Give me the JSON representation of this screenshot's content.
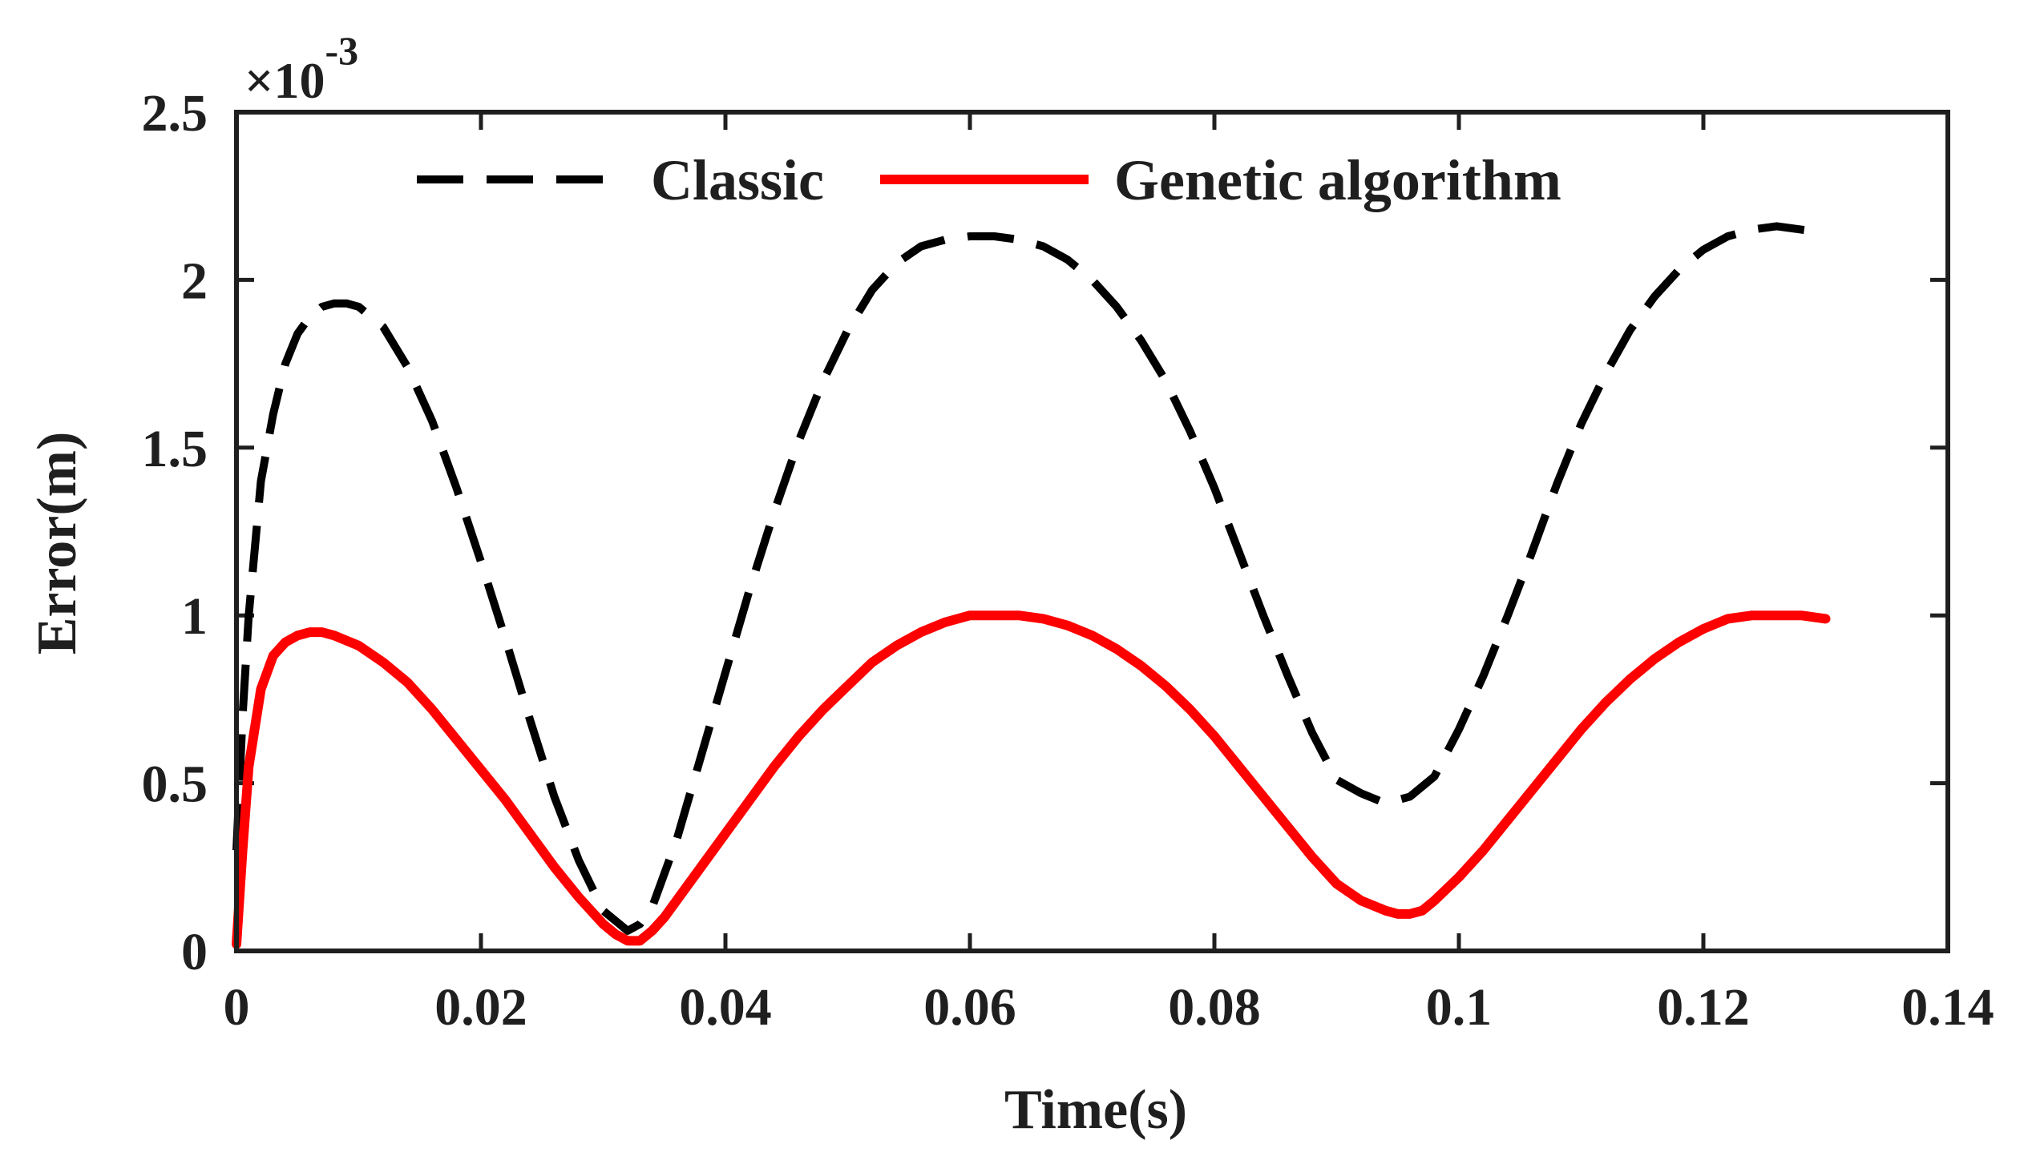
{
  "chart_data": {
    "type": "line",
    "title": "",
    "xlabel": "Time(s)",
    "ylabel": "Error(m)",
    "xlim": [
      0,
      0.14
    ],
    "ylim": [
      0,
      0.0025
    ],
    "xticks": [
      0,
      0.02,
      0.04,
      0.06,
      0.08,
      0.1,
      0.12,
      0.14
    ],
    "xtick_labels": [
      "0",
      "0.02",
      "0.04",
      "0.06",
      "0.08",
      "0.1",
      "0.12",
      "0.14"
    ],
    "yticks": [
      0,
      0.0005,
      0.001,
      0.0015,
      0.002,
      0.0025
    ],
    "ytick_labels": [
      "0",
      "0.5",
      "1",
      "1.5",
      "2",
      "2.5"
    ],
    "y_exponent": {
      "prefix": "×10",
      "power": "-3"
    },
    "grid": false,
    "legend": {
      "placement": "top-center",
      "orientation": "horizontal"
    },
    "series": [
      {
        "name": "Classic",
        "color": "#000000",
        "style": "dashed",
        "x": [
          0,
          0.0005,
          0.001,
          0.002,
          0.003,
          0.004,
          0.005,
          0.006,
          0.007,
          0.008,
          0.009,
          0.01,
          0.012,
          0.014,
          0.016,
          0.018,
          0.02,
          0.022,
          0.024,
          0.026,
          0.028,
          0.03,
          0.032,
          0.033,
          0.034,
          0.036,
          0.038,
          0.04,
          0.042,
          0.044,
          0.046,
          0.048,
          0.05,
          0.052,
          0.054,
          0.056,
          0.058,
          0.06,
          0.062,
          0.064,
          0.066,
          0.068,
          0.07,
          0.072,
          0.074,
          0.076,
          0.078,
          0.08,
          0.082,
          0.084,
          0.086,
          0.088,
          0.09,
          0.092,
          0.094,
          0.096,
          0.098,
          0.1,
          0.102,
          0.104,
          0.106,
          0.108,
          0.11,
          0.112,
          0.114,
          0.116,
          0.118,
          0.12,
          0.122,
          0.124,
          0.126,
          0.128,
          0.13
        ],
        "values": [
          0.0003,
          0.0007,
          0.001,
          0.0014,
          0.0016,
          0.00175,
          0.00184,
          0.00189,
          0.00192,
          0.00193,
          0.00193,
          0.00192,
          0.00186,
          0.00174,
          0.00158,
          0.00138,
          0.00116,
          0.00093,
          0.00069,
          0.00046,
          0.00027,
          0.00012,
          6e-05,
          8e-05,
          0.00013,
          0.00033,
          0.00058,
          0.00083,
          0.00108,
          0.00131,
          0.00152,
          0.0017,
          0.00185,
          0.00197,
          0.00205,
          0.0021,
          0.00212,
          0.00213,
          0.00213,
          0.00212,
          0.0021,
          0.00206,
          0.002,
          0.00192,
          0.00182,
          0.0017,
          0.00155,
          0.00138,
          0.00119,
          0.001,
          0.00082,
          0.00065,
          0.00051,
          0.00047,
          0.00044,
          0.00046,
          0.00052,
          0.00066,
          0.00082,
          0.001,
          0.00119,
          0.00139,
          0.00157,
          0.00172,
          0.00185,
          0.00195,
          0.00203,
          0.00209,
          0.00213,
          0.00215,
          0.00216,
          0.00215,
          0.00214
        ]
      },
      {
        "name": "Genetic algorithm",
        "color": "#ff0000",
        "style": "solid",
        "x": [
          0,
          0.0005,
          0.001,
          0.002,
          0.003,
          0.004,
          0.005,
          0.006,
          0.007,
          0.008,
          0.01,
          0.012,
          0.014,
          0.016,
          0.018,
          0.02,
          0.022,
          0.024,
          0.026,
          0.028,
          0.03,
          0.031,
          0.032,
          0.033,
          0.034,
          0.035,
          0.036,
          0.038,
          0.04,
          0.042,
          0.044,
          0.046,
          0.048,
          0.05,
          0.052,
          0.054,
          0.056,
          0.058,
          0.06,
          0.062,
          0.064,
          0.066,
          0.068,
          0.07,
          0.072,
          0.074,
          0.076,
          0.078,
          0.08,
          0.082,
          0.084,
          0.086,
          0.088,
          0.09,
          0.092,
          0.094,
          0.095,
          0.096,
          0.097,
          0.098,
          0.1,
          0.102,
          0.104,
          0.106,
          0.108,
          0.11,
          0.112,
          0.114,
          0.116,
          0.118,
          0.12,
          0.122,
          0.124,
          0.126,
          0.128,
          0.13
        ],
        "values": [
          2e-05,
          0.0003,
          0.00055,
          0.00078,
          0.00088,
          0.00092,
          0.00094,
          0.00095,
          0.00095,
          0.00094,
          0.00091,
          0.00086,
          0.0008,
          0.00072,
          0.00063,
          0.00054,
          0.00045,
          0.00035,
          0.00025,
          0.00016,
          8e-05,
          5e-05,
          3e-05,
          3e-05,
          6e-05,
          0.0001,
          0.00015,
          0.00025,
          0.00035,
          0.00045,
          0.00055,
          0.00064,
          0.00072,
          0.00079,
          0.00086,
          0.00091,
          0.00095,
          0.00098,
          0.001,
          0.001,
          0.001,
          0.00099,
          0.00097,
          0.00094,
          0.0009,
          0.00085,
          0.00079,
          0.00072,
          0.00064,
          0.00055,
          0.00046,
          0.00037,
          0.00028,
          0.0002,
          0.00015,
          0.00012,
          0.00011,
          0.00011,
          0.00012,
          0.00015,
          0.00022,
          0.0003,
          0.00039,
          0.00048,
          0.00057,
          0.00066,
          0.00074,
          0.00081,
          0.00087,
          0.00092,
          0.00096,
          0.00099,
          0.001,
          0.001,
          0.001,
          0.00099
        ]
      }
    ]
  }
}
